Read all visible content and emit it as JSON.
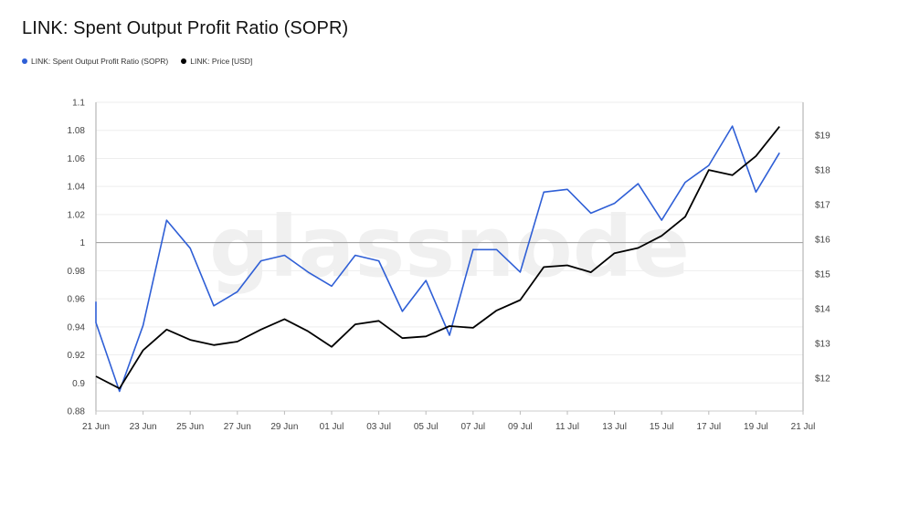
{
  "header": {
    "title": "LINK: Spent Output Profit Ratio (SOPR)"
  },
  "legend": [
    {
      "label": "LINK: Spent Output Profit Ratio (SOPR)",
      "color": "#2f5fd6"
    },
    {
      "label": "LINK: Price [USD]",
      "color": "#000000"
    }
  ],
  "watermark": "glassnode",
  "chart_data": {
    "type": "line",
    "x": [
      "21 Jun",
      "22 Jun",
      "23 Jun",
      "24 Jun",
      "25 Jun",
      "26 Jun",
      "27 Jun",
      "28 Jun",
      "29 Jun",
      "30 Jun",
      "01 Jul",
      "02 Jul",
      "03 Jul",
      "04 Jul",
      "05 Jul",
      "06 Jul",
      "07 Jul",
      "08 Jul",
      "09 Jul",
      "10 Jul",
      "11 Jul",
      "12 Jul",
      "13 Jul",
      "14 Jul",
      "15 Jul",
      "16 Jul",
      "17 Jul",
      "18 Jul",
      "19 Jul",
      "20 Jul"
    ],
    "x_ticks": [
      "21 Jun",
      "23 Jun",
      "25 Jun",
      "27 Jun",
      "29 Jun",
      "01 Jul",
      "03 Jul",
      "05 Jul",
      "07 Jul",
      "09 Jul",
      "11 Jul",
      "13 Jul",
      "15 Jul",
      "17 Jul",
      "19 Jul",
      "21 Jul"
    ],
    "series": [
      {
        "name": "LINK: Spent Output Profit Ratio (SOPR)",
        "axis": "left",
        "color": "#2f5fd6",
        "values": [
          0.943,
          0.894,
          0.941,
          1.016,
          0.996,
          0.955,
          0.965,
          0.987,
          0.991,
          0.979,
          0.969,
          0.991,
          0.987,
          0.951,
          0.973,
          0.934,
          0.995,
          0.995,
          0.979,
          1.036,
          1.038,
          1.021,
          1.028,
          1.042,
          1.016,
          1.043,
          1.055,
          1.083,
          1.036,
          1.064
        ]
      },
      {
        "name": "LINK: Price [USD]",
        "axis": "right",
        "color": "#000000",
        "values": [
          12.05,
          11.7,
          12.8,
          13.4,
          13.1,
          12.95,
          13.05,
          13.4,
          13.7,
          13.35,
          12.9,
          13.55,
          13.65,
          13.15,
          13.2,
          13.5,
          13.45,
          13.95,
          14.25,
          15.2,
          15.25,
          15.05,
          15.6,
          15.75,
          16.1,
          16.65,
          18.0,
          17.85,
          18.4,
          19.25
        ]
      }
    ],
    "y_left": {
      "ticks": [
        0.88,
        0.9,
        0.92,
        0.94,
        0.96,
        0.98,
        1,
        1.02,
        1.04,
        1.06,
        1.08,
        1.1
      ],
      "tick_labels": [
        "0.88",
        "0.9",
        "0.92",
        "0.94",
        "0.96",
        "0.98",
        "1",
        "1.02",
        "1.04",
        "1.06",
        "1.08",
        "1.1"
      ],
      "ylim": [
        0.88,
        1.1
      ]
    },
    "y_right": {
      "ticks": [
        12,
        13,
        14,
        15,
        16,
        17,
        18,
        19
      ],
      "tick_labels": [
        "$12",
        "$13",
        "$14",
        "$15",
        "$16",
        "$17",
        "$18",
        "$19"
      ],
      "ylim": [
        11.05,
        19.95
      ]
    },
    "reference_line": 1,
    "grid": true
  }
}
